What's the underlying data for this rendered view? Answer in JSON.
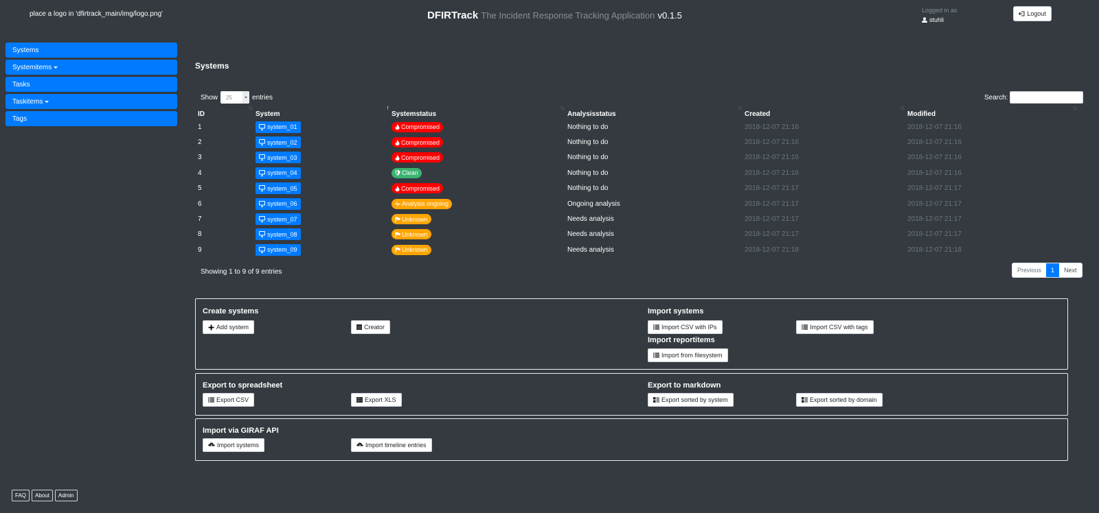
{
  "header": {
    "logo_placeholder": "place a logo in 'dfirtrack_main/img/logo.png'",
    "brand": "DFIRTrack",
    "subtitle": "The Incident Response Tracking Application",
    "version": "v0.1.5",
    "logged_in_label": "Logged in as",
    "username": "stuhli",
    "logout_label": "Logout"
  },
  "sidebar": {
    "items": [
      {
        "label": "Systems",
        "dropdown": false
      },
      {
        "label": "Systemitems",
        "dropdown": true
      },
      {
        "label": "Tasks",
        "dropdown": false
      },
      {
        "label": "Taskitems",
        "dropdown": true
      },
      {
        "label": "Tags",
        "dropdown": false
      }
    ]
  },
  "main": {
    "title": "Systems",
    "table_controls": {
      "show_label": "Show",
      "entries_value": "25",
      "entries_label": "entries",
      "search_label": "Search:",
      "search_value": ""
    },
    "columns": [
      "ID",
      "System",
      "Systemstatus",
      "Analysisstatus",
      "Created",
      "Modified"
    ],
    "rows": [
      {
        "id": "1",
        "system": "system_01",
        "status": "Compromised",
        "status_color": "red",
        "analysis": "Nothing to do",
        "created": "2018-12-07 21:16",
        "modified": "2018-12-07 21:16"
      },
      {
        "id": "2",
        "system": "system_02",
        "status": "Compromised",
        "status_color": "red",
        "analysis": "Nothing to do",
        "created": "2018-12-07 21:16",
        "modified": "2018-12-07 21:16"
      },
      {
        "id": "3",
        "system": "system_03",
        "status": "Compromised",
        "status_color": "red",
        "analysis": "Nothing to do",
        "created": "2018-12-07 21:16",
        "modified": "2018-12-07 21:16"
      },
      {
        "id": "4",
        "system": "system_04",
        "status": "Clean",
        "status_color": "green",
        "analysis": "Nothing to do",
        "created": "2018-12-07 21:16",
        "modified": "2018-12-07 21:16"
      },
      {
        "id": "5",
        "system": "system_05",
        "status": "Compromised",
        "status_color": "red",
        "analysis": "Nothing to do",
        "created": "2018-12-07 21:17",
        "modified": "2018-12-07 21:17"
      },
      {
        "id": "6",
        "system": "system_06",
        "status": "Analysis ongoing",
        "status_color": "orange",
        "analysis": "Ongoing analysis",
        "created": "2018-12-07 21:17",
        "modified": "2018-12-07 21:17"
      },
      {
        "id": "7",
        "system": "system_07",
        "status": "Unknown",
        "status_color": "orange",
        "analysis": "Needs analysis",
        "created": "2018-12-07 21:17",
        "modified": "2018-12-07 21:17"
      },
      {
        "id": "8",
        "system": "system_08",
        "status": "Unknown",
        "status_color": "orange",
        "analysis": "Needs analysis",
        "created": "2018-12-07 21:17",
        "modified": "2018-12-07 21:17"
      },
      {
        "id": "9",
        "system": "system_09",
        "status": "Unknown",
        "status_color": "orange",
        "analysis": "Needs analysis",
        "created": "2018-12-07 21:18",
        "modified": "2018-12-07 21:18"
      }
    ],
    "info": "Showing 1 to 9 of 9 entries",
    "pagination": {
      "previous": "Previous",
      "current": "1",
      "next": "Next"
    }
  },
  "panels": {
    "create": {
      "title": "Create systems",
      "add_system": "Add system",
      "creator": "Creator",
      "import_title": "Import systems",
      "import_csv_ips": "Import CSV with IPs",
      "import_csv_tags": "Import CSV with tags",
      "reportitems_title": "Import reportitems",
      "import_filesystem": "Import from filesystem"
    },
    "export": {
      "spreadsheet_title": "Export to spreadsheet",
      "export_csv": "Export CSV",
      "export_xls": "Export XLS",
      "markdown_title": "Export to markdown",
      "sorted_system": "Export sorted by system",
      "sorted_domain": "Export sorted by domain"
    },
    "giraf": {
      "title": "Import via GIRAF API",
      "import_systems": "Import systems",
      "import_timeline": "Import timeline entries"
    }
  },
  "footer": {
    "faq": "FAQ",
    "about": "About",
    "admin": "Admin"
  },
  "colors": {
    "background": "#343a40",
    "primary": "#007bff",
    "compromised": "#ff0000",
    "clean": "#3cb371",
    "unknown": "#ffa500"
  }
}
